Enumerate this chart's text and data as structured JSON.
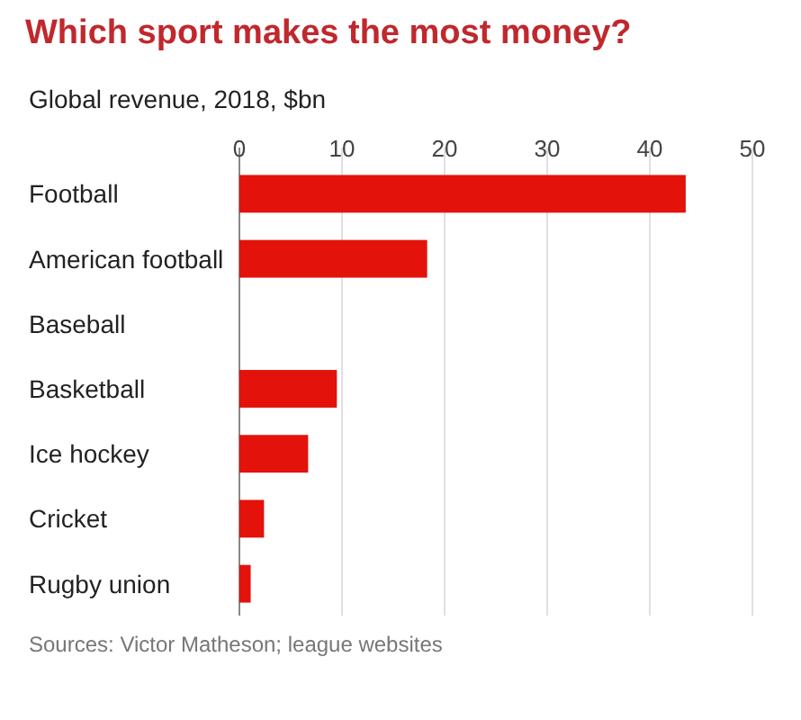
{
  "chart_data": {
    "type": "bar",
    "orientation": "horizontal",
    "title": "Which sport makes the most money?",
    "subtitle": "Global revenue, 2018, $bn",
    "categories": [
      "Football",
      "American football",
      "Baseball",
      "Basketball",
      "Ice hockey",
      "Cricket",
      "Rugby union"
    ],
    "values": [
      43.5,
      18.3,
      null,
      9.5,
      6.7,
      2.4,
      1.1
    ],
    "color": "#e3120b",
    "xlim": [
      0,
      50
    ],
    "xticks": [
      0,
      10,
      20,
      30,
      40,
      50
    ],
    "grid": "x",
    "annotations": [
      "Sources: Victor Matheson; league websites"
    ]
  }
}
